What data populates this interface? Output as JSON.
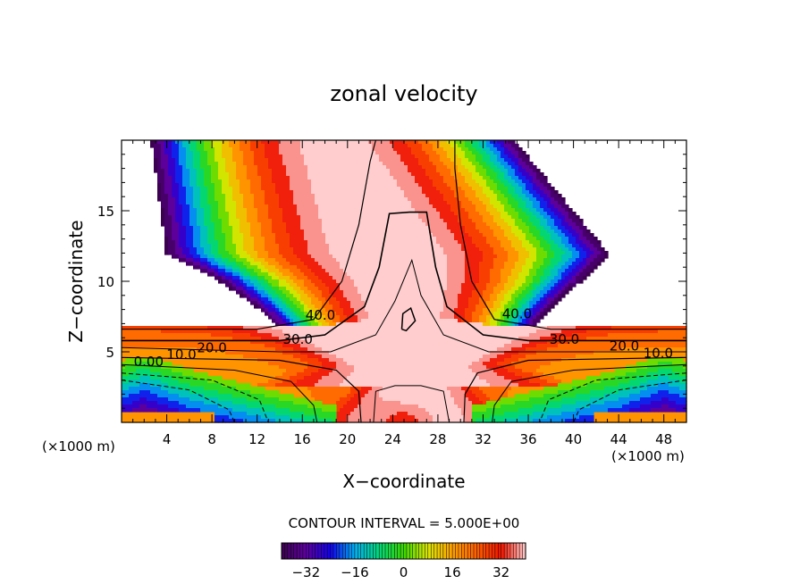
{
  "chart_data": {
    "type": "heatmap",
    "title": "zonal velocity",
    "xlabel": "X−coordinate",
    "ylabel": "Z−coordinate",
    "x_units_note": "(×1000 m)",
    "z_units_note": "(×1000 m)",
    "xlim": [
      0,
      50
    ],
    "ylim": [
      0,
      20
    ],
    "x_ticks": [
      4,
      8,
      12,
      16,
      20,
      24,
      28,
      32,
      36,
      40,
      44,
      48
    ],
    "x_tick_labels": [
      "4",
      "8",
      "12",
      "16",
      "20",
      "24",
      "28",
      "32",
      "36",
      "40",
      "44",
      "48"
    ],
    "y_ticks": [
      5,
      10,
      15
    ],
    "y_tick_labels": [
      "5",
      "10",
      "15"
    ],
    "contour_interval_text": "CONTOUR INTERVAL = 5.000E+00",
    "contour_interval": 5.0,
    "contour_labels": [
      {
        "text": "40.0",
        "x": 17.6,
        "z": 7.6
      },
      {
        "text": "30.0",
        "x": 15.6,
        "z": 5.9
      },
      {
        "text": "20.0",
        "x": 8.0,
        "z": 5.3
      },
      {
        "text": "10.0",
        "x": 5.3,
        "z": 4.8
      },
      {
        "text": "0.00",
        "x": 2.4,
        "z": 4.3
      },
      {
        "text": "40.0",
        "x": 35.0,
        "z": 7.7
      },
      {
        "text": "30.0",
        "x": 39.2,
        "z": 5.9
      },
      {
        "text": "20.0",
        "x": 44.5,
        "z": 5.4
      },
      {
        "text": "10.0",
        "x": 47.5,
        "z": 4.9
      }
    ],
    "colorbar": {
      "vmin": -40,
      "vmax": 40,
      "tick_values": [
        -32,
        -16,
        0,
        16,
        32
      ],
      "tick_labels": [
        "−32",
        "−16",
        "0",
        "16",
        "32"
      ]
    }
  }
}
